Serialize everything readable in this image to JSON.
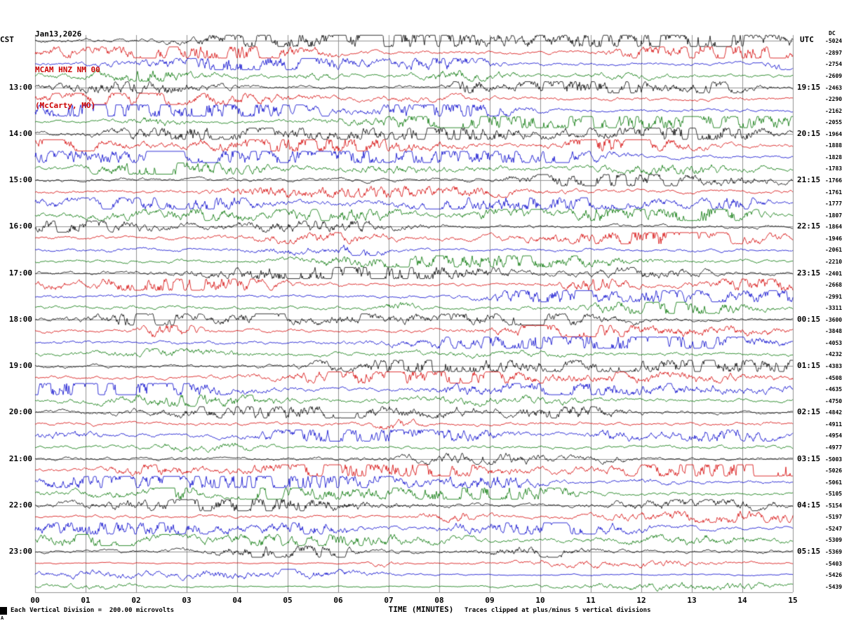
{
  "title": {
    "date": "Jan13,2026",
    "station": "MCAM HNZ NM 00",
    "location": "(McCarty, MO)"
  },
  "axes": {
    "left_label": "CST",
    "right_label": "UTC",
    "dc_label": "DC",
    "x_axis_title": "TIME (MINUTES)",
    "minute_ticks": [
      "00",
      "01",
      "02",
      "03",
      "04",
      "05",
      "06",
      "07",
      "08",
      "09",
      "10",
      "11",
      "12",
      "13",
      "14",
      "15"
    ],
    "left_hours": [
      {
        "row": 4,
        "label": "13:00"
      },
      {
        "row": 8,
        "label": "14:00"
      },
      {
        "row": 12,
        "label": "15:00"
      },
      {
        "row": 16,
        "label": "16:00"
      },
      {
        "row": 20,
        "label": "17:00"
      },
      {
        "row": 24,
        "label": "18:00"
      },
      {
        "row": 28,
        "label": "19:00"
      },
      {
        "row": 32,
        "label": "20:00"
      },
      {
        "row": 36,
        "label": "21:00"
      },
      {
        "row": 40,
        "label": "22:00"
      },
      {
        "row": 44,
        "label": "23:00"
      }
    ],
    "right_hours": [
      {
        "row": 4,
        "label": "19:15"
      },
      {
        "row": 8,
        "label": "20:15"
      },
      {
        "row": 12,
        "label": "21:15"
      },
      {
        "row": 16,
        "label": "22:15"
      },
      {
        "row": 20,
        "label": "23:15"
      },
      {
        "row": 24,
        "label": "00:15"
      },
      {
        "row": 28,
        "label": "01:15"
      },
      {
        "row": 32,
        "label": "02:15"
      },
      {
        "row": 36,
        "label": "03:15"
      },
      {
        "row": 40,
        "label": "04:15"
      },
      {
        "row": 44,
        "label": "05:15"
      }
    ]
  },
  "footer": {
    "left_note": "Each Vertical Division =  200.00 microvolts",
    "right_note": "Traces clipped at plus/minus 5 vertical divisions",
    "corner_mark": "A"
  },
  "chart_data": {
    "type": "line",
    "title": "Jan13,2026 MCAM HNZ NM 00 (McCarty, MO) helicorder seismogram",
    "xlabel": "TIME (MINUTES)",
    "x_range_minutes": [
      0,
      15
    ],
    "trace_count": 48,
    "minutes_per_trace": 15,
    "traces_per_hour": 4,
    "start_time_cst": "12:00",
    "end_time_cst": "24:00",
    "color_cycle": [
      "black",
      "red",
      "blue",
      "green"
    ],
    "colors": {
      "black": "#000000",
      "red": "#d40000",
      "blue": "#0000cc",
      "green": "#007400",
      "grid": "#909090"
    },
    "dc_offsets": [
      "-5024",
      "-2897",
      "-2754",
      "-2609",
      "-2463",
      "-2290",
      "-2162",
      "-2055",
      "-1964",
      "-1888",
      "-1828",
      "-1783",
      "-1766",
      "-1761",
      "-1777",
      "-1807",
      "-1864",
      "-1946",
      "-2061",
      "-2210",
      "-2401",
      "-2668",
      "-2991",
      "-3311",
      "-3600",
      "-3848",
      "-4053",
      "-4232",
      "-4383",
      "-4508",
      "-4635",
      "-4750",
      "-4842",
      "-4911",
      "-4954",
      "-4977",
      "-5003",
      "-5026",
      "-5061",
      "-5105",
      "-5154",
      "-5197",
      "-5247",
      "-5309",
      "-5369",
      "-5403",
      "-5426",
      "-5439"
    ],
    "scale_note": "Each Vertical Division =  200.00 microvolts",
    "clip_note": "Traces clipped at plus/minus 5 vertical divisions"
  }
}
